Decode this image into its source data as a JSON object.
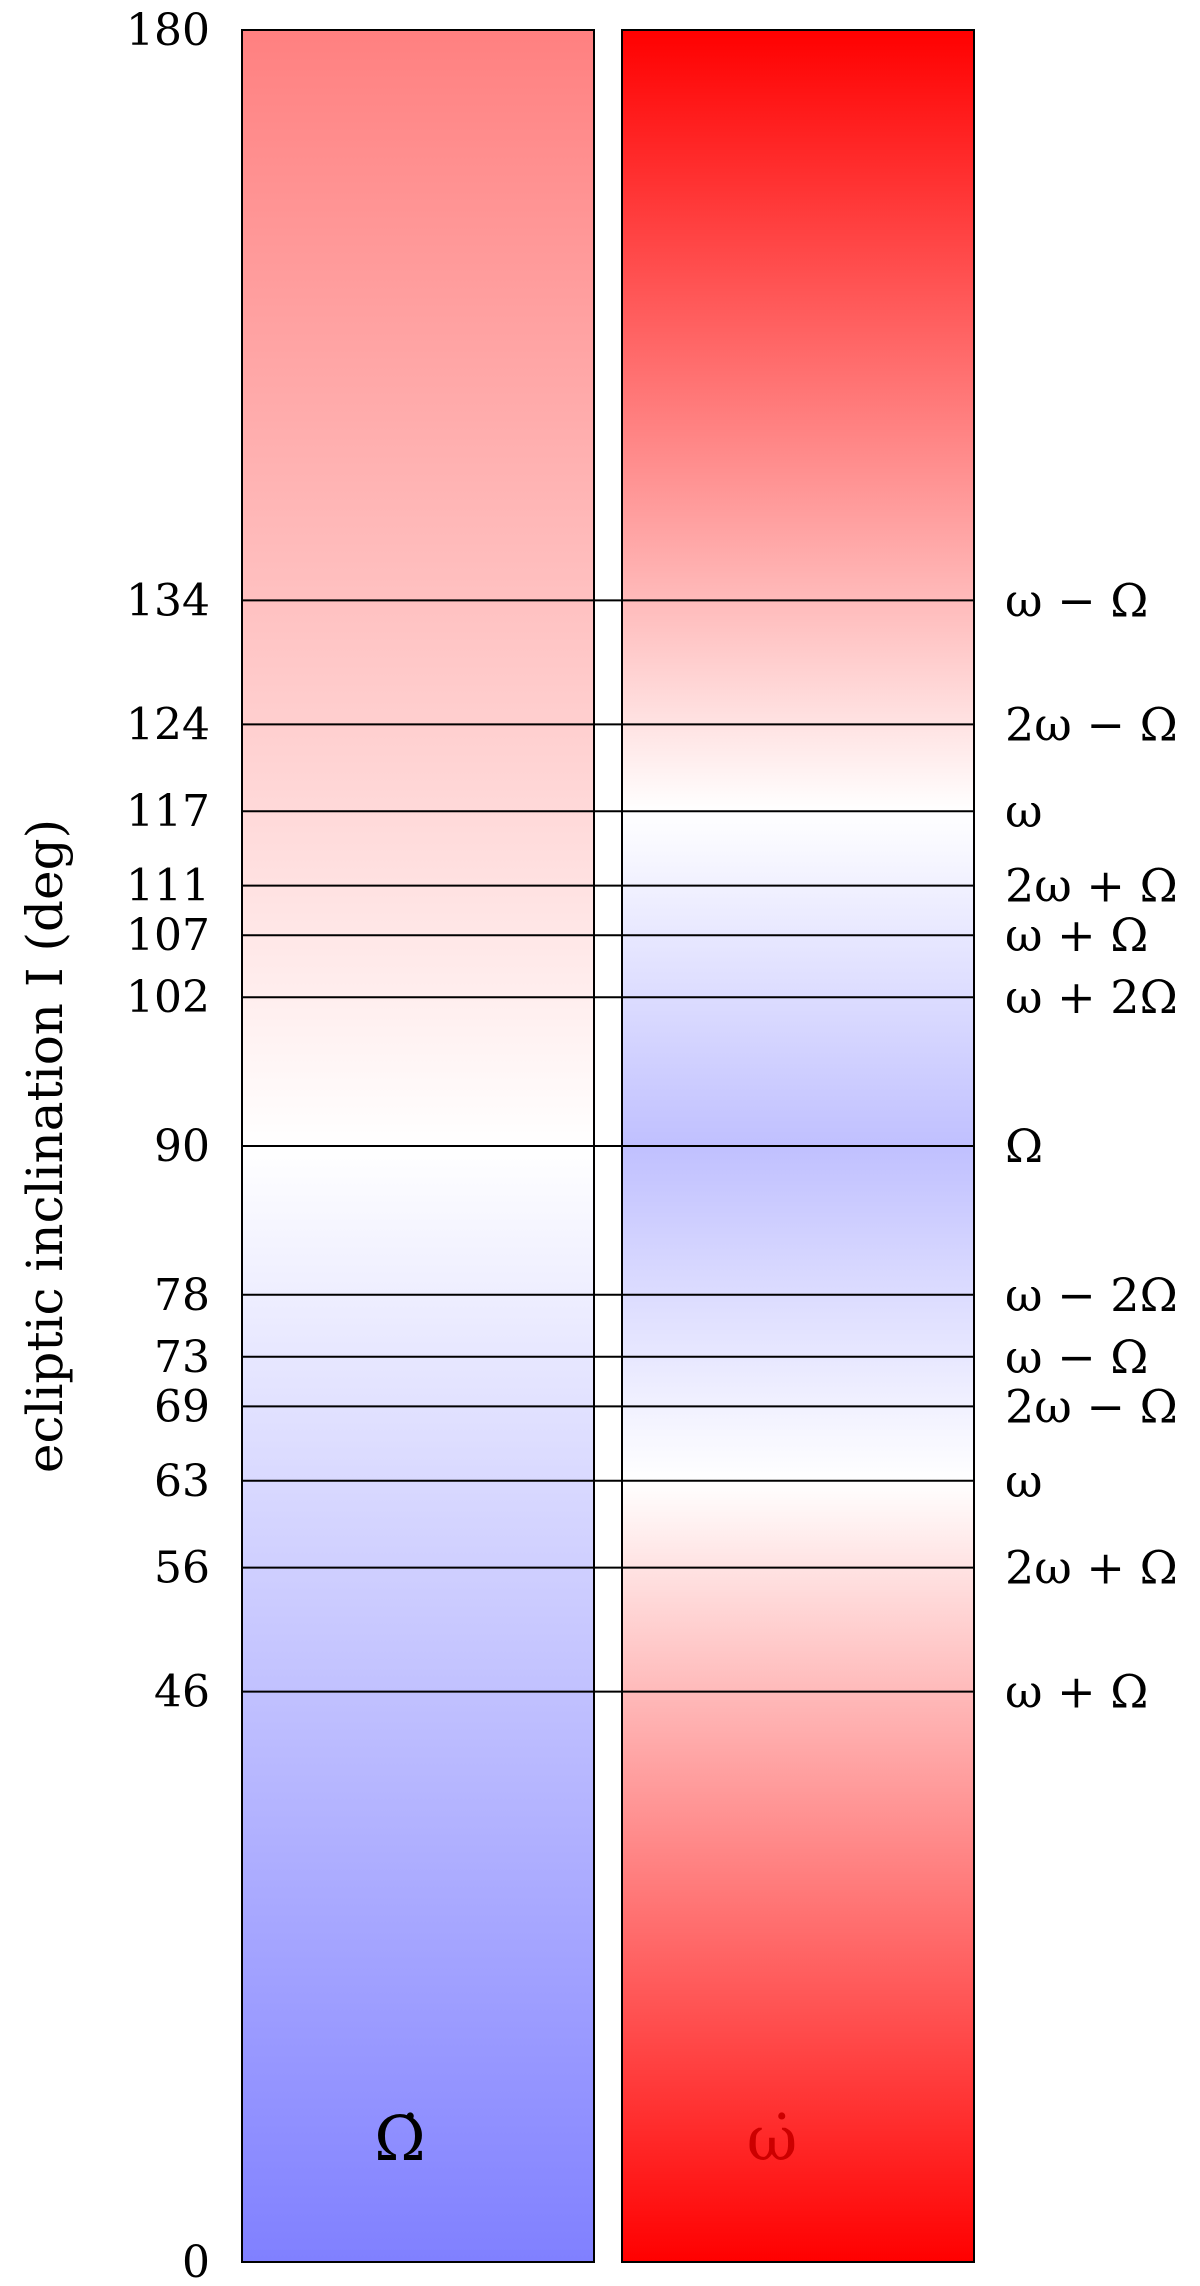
{
  "axis": {
    "label": "ecliptic inclination I (deg)",
    "min": 0,
    "max": 180,
    "ticks": [
      0,
      46,
      56,
      63,
      69,
      73,
      78,
      90,
      102,
      107,
      111,
      117,
      124,
      134,
      180
    ]
  },
  "columns": [
    {
      "symbol": "Ω̇",
      "symbol_color": "#000000",
      "gradient": [
        {
          "inc": 0,
          "color": "#8080ff"
        },
        {
          "inc": 90,
          "color": "#ffffff"
        },
        {
          "inc": 180,
          "color": "#ff8080"
        }
      ]
    },
    {
      "symbol": "ω̇",
      "symbol_color": "#cc0000",
      "gradient": [
        {
          "inc": 0,
          "color": "#ff0000"
        },
        {
          "inc": 63,
          "color": "#ffffff"
        },
        {
          "inc": 90,
          "color": "#c0c0ff"
        },
        {
          "inc": 117,
          "color": "#ffffff"
        },
        {
          "inc": 180,
          "color": "#ff0000"
        }
      ]
    }
  ],
  "resonances": [
    {
      "inc": 46,
      "label": "ω + Ω"
    },
    {
      "inc": 56,
      "label": "2ω + Ω"
    },
    {
      "inc": 63,
      "label": "ω"
    },
    {
      "inc": 69,
      "label": "2ω − Ω"
    },
    {
      "inc": 73,
      "label": "ω − Ω"
    },
    {
      "inc": 78,
      "label": "ω − 2Ω"
    },
    {
      "inc": 90,
      "label": "Ω"
    },
    {
      "inc": 102,
      "label": "ω + 2Ω"
    },
    {
      "inc": 107,
      "label": "ω + Ω"
    },
    {
      "inc": 111,
      "label": "2ω + Ω"
    },
    {
      "inc": 117,
      "label": "ω"
    },
    {
      "inc": 124,
      "label": "2ω − Ω"
    },
    {
      "inc": 134,
      "label": "ω − Ω"
    }
  ]
}
